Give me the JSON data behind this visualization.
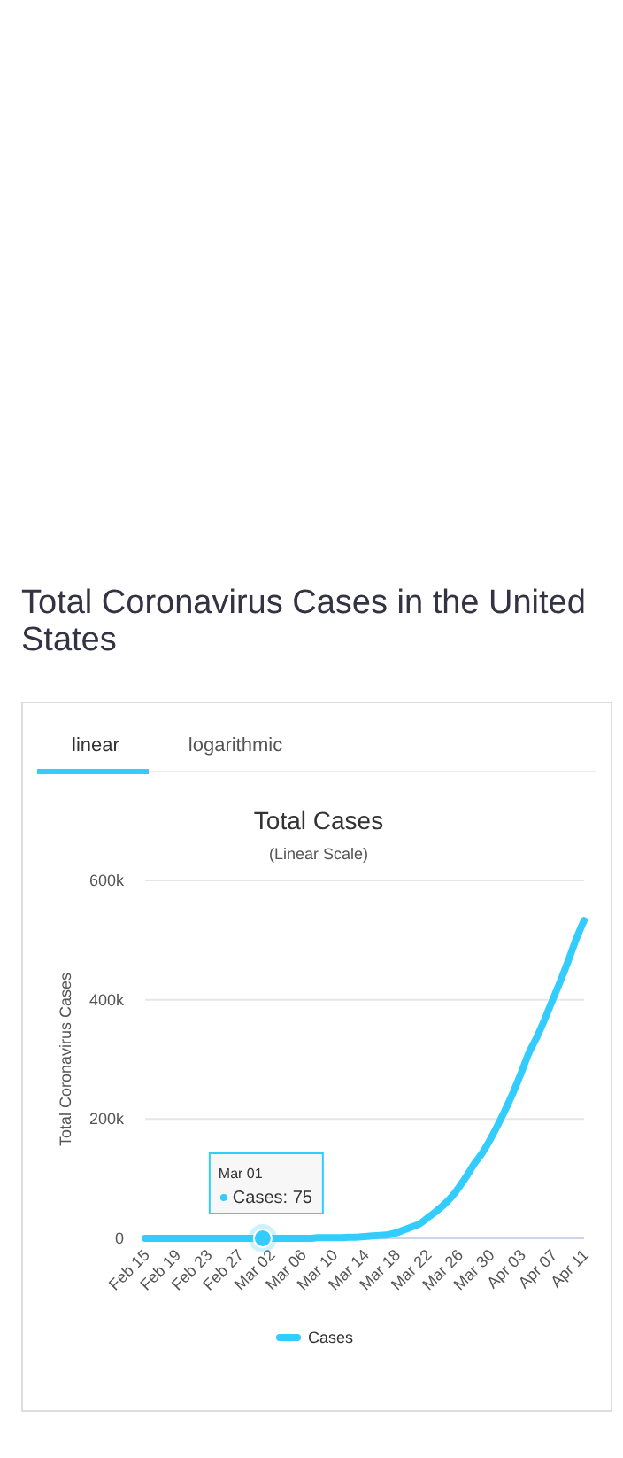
{
  "chart_data": {
    "type": "line",
    "title": "Total Cases",
    "subtitle": "(Linear Scale)",
    "ylabel": "Total Coronavirus Cases",
    "annotations": [
      "Total Coronavirus Cases in the United States",
      "linear",
      "logarithmic",
      {
        "text": "Mar 01\nCases: 75",
        "y": 75
      }
    ],
    "categories": [
      "Feb 15",
      null,
      null,
      null,
      "Feb 19",
      null,
      null,
      null,
      "Feb 23",
      null,
      null,
      null,
      "Feb 27",
      null,
      null,
      null,
      "Mar 02",
      null,
      null,
      null,
      "Mar 06",
      null,
      null,
      null,
      "Mar 10",
      null,
      null,
      null,
      "Mar 14",
      null,
      null,
      null,
      "Mar 18",
      null,
      null,
      null,
      "Mar 22",
      null,
      null,
      null,
      "Mar 26",
      null,
      null,
      null,
      "Mar 30",
      null,
      null,
      null,
      "Apr 03",
      null,
      null,
      null,
      "Apr 07",
      null,
      null,
      null,
      "Apr 11"
    ],
    "series": [
      {
        "name": "Cases",
        "color": "#33ccff",
        "values": [
          0,
          0,
          0,
          0,
          0,
          0,
          0,
          0,
          0,
          0,
          0,
          0,
          0,
          0,
          0,
          75,
          0,
          0,
          0,
          0,
          0,
          0,
          1000,
          1000,
          1000,
          1000,
          2000,
          2000,
          3000,
          4000,
          5000,
          6000,
          9000,
          14000,
          19000,
          24000,
          34000,
          44000,
          55000,
          68000,
          85000,
          104000,
          125000,
          143000,
          165000,
          190000,
          217000,
          246000,
          278000,
          312000,
          338000,
          368000,
          400000,
          432000,
          466000,
          502000,
          533000
        ]
      }
    ],
    "ylim": [
      0,
      600000
    ],
    "yticks": [
      {
        "value": 0,
        "label": "0"
      },
      {
        "value": 200000,
        "label": "200k"
      },
      {
        "value": 400000,
        "label": "400k"
      },
      {
        "value": 600000,
        "label": "600k"
      }
    ],
    "grid": "y",
    "legend": "bottom",
    "marker": "none",
    "line_style": "solid"
  }
}
